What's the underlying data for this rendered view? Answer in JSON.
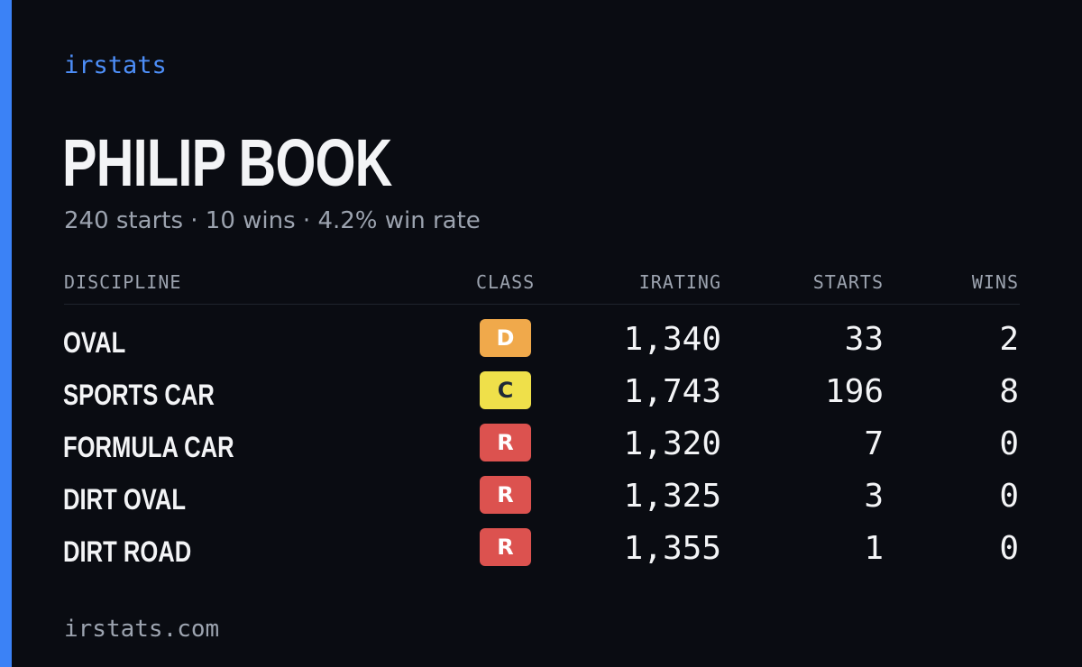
{
  "brand": "irstats",
  "driver_name": "PHILIP BOOK",
  "summary": "240 starts · 10 wins · 4.2% win rate",
  "table": {
    "headers": {
      "discipline": "DISCIPLINE",
      "class": "CLASS",
      "irating": "IRATING",
      "starts": "STARTS",
      "wins": "WINS"
    },
    "rows": [
      {
        "discipline": "OVAL",
        "class": "D",
        "class_bg": "#f0a94b",
        "class_fg": "#ffffff",
        "irating": "1,340",
        "starts": "33",
        "wins": "2"
      },
      {
        "discipline": "SPORTS CAR",
        "class": "C",
        "class_bg": "#efe04a",
        "class_fg": "#1f2937",
        "irating": "1,743",
        "starts": "196",
        "wins": "8"
      },
      {
        "discipline": "FORMULA CAR",
        "class": "R",
        "class_bg": "#dc524f",
        "class_fg": "#ffffff",
        "irating": "1,320",
        "starts": "7",
        "wins": "0"
      },
      {
        "discipline": "DIRT OVAL",
        "class": "R",
        "class_bg": "#dc524f",
        "class_fg": "#ffffff",
        "irating": "1,325",
        "starts": "3",
        "wins": "0"
      },
      {
        "discipline": "DIRT ROAD",
        "class": "R",
        "class_bg": "#dc524f",
        "class_fg": "#ffffff",
        "irating": "1,355",
        "starts": "1",
        "wins": "0"
      }
    ]
  },
  "footer": "irstats.com",
  "colors": {
    "background": "#0a0c12",
    "accent": "#3b82f6",
    "brand_text": "#4d8ef7",
    "muted_text": "#9ca3af",
    "primary_text": "#f3f4f6"
  }
}
